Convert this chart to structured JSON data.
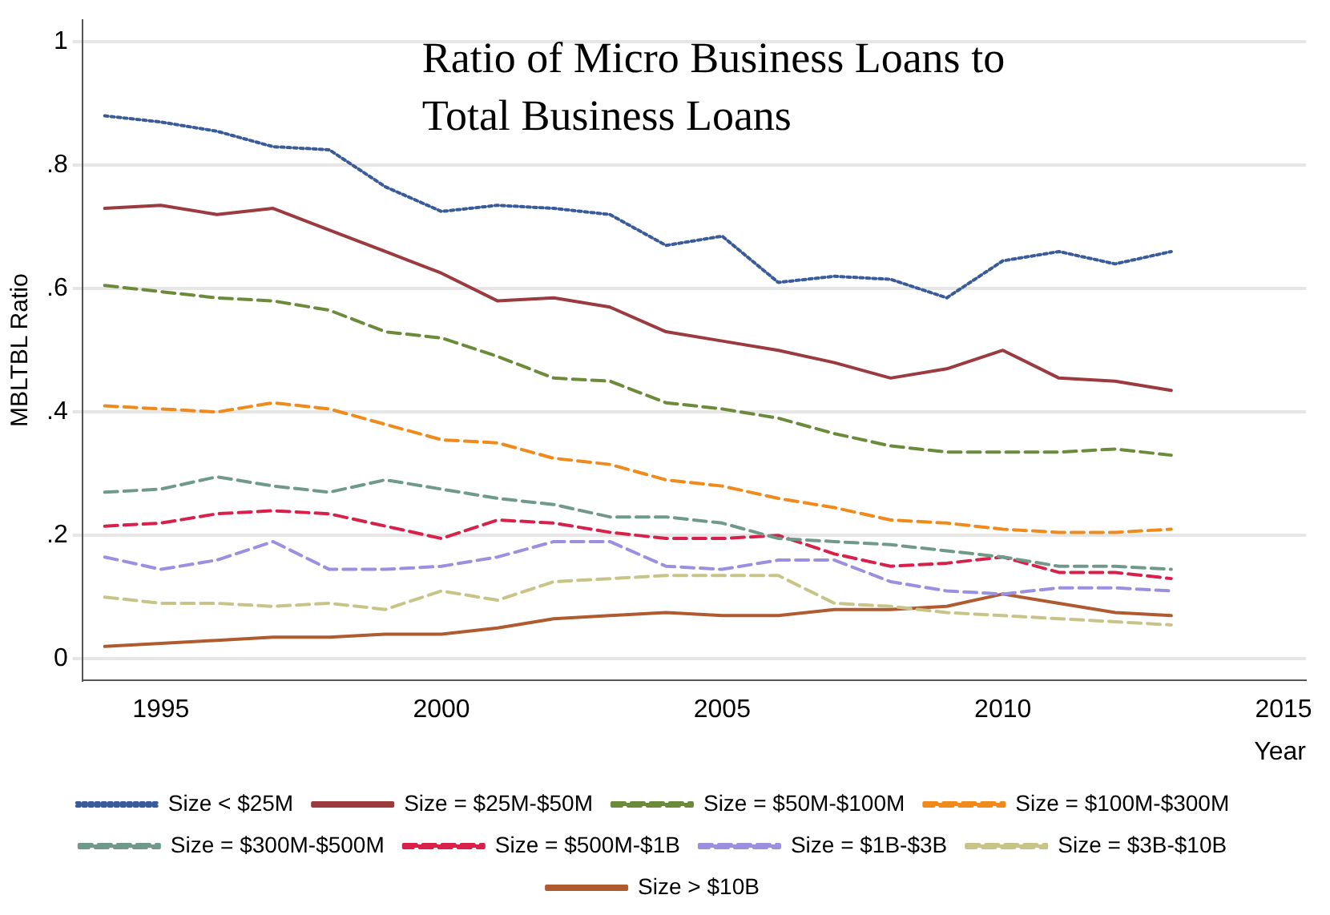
{
  "chart_data": {
    "type": "line",
    "title": "Ratio of Micro Business Loans to Total Business Loans",
    "xlabel": "Year",
    "ylabel": "MBLTBL Ratio",
    "x": [
      1994,
      1995,
      1996,
      1997,
      1998,
      1999,
      2000,
      2001,
      2002,
      2003,
      2004,
      2005,
      2006,
      2007,
      2008,
      2009,
      2010,
      2011,
      2012,
      2013
    ],
    "xlim": [
      1993.6,
      2015.4
    ],
    "xticks": [
      1995,
      2000,
      2005,
      2010,
      2015
    ],
    "ylim": [
      -0.035,
      1.035
    ],
    "yticks": [
      {
        "value": 0,
        "label": "0"
      },
      {
        "value": 0.2,
        "label": ".2"
      },
      {
        "value": 0.4,
        "label": ".4"
      },
      {
        "value": 0.6,
        "label": ".6"
      },
      {
        "value": 0.8,
        "label": ".8"
      },
      {
        "value": 1,
        "label": "1"
      }
    ],
    "grid": "y",
    "legend": "bottom",
    "marker": "none",
    "series": [
      {
        "name": "Size < $25M",
        "color": "#3a5b9a",
        "line_style": "dotted",
        "values": [
          0.88,
          0.87,
          0.855,
          0.83,
          0.825,
          0.765,
          0.725,
          0.735,
          0.73,
          0.72,
          0.67,
          0.685,
          0.61,
          0.62,
          0.615,
          0.585,
          0.645,
          0.66,
          0.64,
          0.66
        ]
      },
      {
        "name": "Size = $25M-$50M",
        "color": "#9b3a3f",
        "line_style": "solid",
        "values": [
          0.73,
          0.735,
          0.72,
          0.73,
          0.695,
          0.66,
          0.625,
          0.58,
          0.585,
          0.57,
          0.53,
          0.515,
          0.5,
          0.48,
          0.455,
          0.47,
          0.5,
          0.455,
          0.45,
          0.435
        ]
      },
      {
        "name": "Size = $50M-$100M",
        "color": "#6b8a3a",
        "line_style": "dashed",
        "values": [
          0.605,
          0.595,
          0.585,
          0.58,
          0.565,
          0.53,
          0.52,
          0.49,
          0.455,
          0.45,
          0.415,
          0.405,
          0.39,
          0.365,
          0.345,
          0.335,
          0.335,
          0.335,
          0.34,
          0.33
        ]
      },
      {
        "name": "Size = $100M-$300M",
        "color": "#f08a1a",
        "line_style": "dashed",
        "values": [
          0.41,
          0.405,
          0.4,
          0.415,
          0.405,
          0.38,
          0.355,
          0.35,
          0.325,
          0.315,
          0.29,
          0.28,
          0.26,
          0.245,
          0.225,
          0.22,
          0.21,
          0.205,
          0.205,
          0.21
        ]
      },
      {
        "name": "Size = $300M-$500M",
        "color": "#6f9a8a",
        "line_style": "dashed",
        "values": [
          0.27,
          0.275,
          0.295,
          0.28,
          0.27,
          0.29,
          0.275,
          0.26,
          0.25,
          0.23,
          0.23,
          0.22,
          0.195,
          0.19,
          0.185,
          0.175,
          0.165,
          0.15,
          0.15,
          0.145
        ]
      },
      {
        "name": "Size = $500M-$1B",
        "color": "#d8204a",
        "line_style": "dashed",
        "values": [
          0.215,
          0.22,
          0.235,
          0.24,
          0.235,
          0.215,
          0.195,
          0.225,
          0.22,
          0.205,
          0.195,
          0.195,
          0.2,
          0.17,
          0.15,
          0.155,
          0.165,
          0.14,
          0.14,
          0.13
        ]
      },
      {
        "name": "Size = $1B-$3B",
        "color": "#9b8fe0",
        "line_style": "dashed",
        "values": [
          0.165,
          0.145,
          0.16,
          0.19,
          0.145,
          0.145,
          0.15,
          0.165,
          0.19,
          0.19,
          0.15,
          0.145,
          0.16,
          0.16,
          0.125,
          0.11,
          0.105,
          0.115,
          0.115,
          0.11
        ]
      },
      {
        "name": "Size = $3B-$10B",
        "color": "#c8c488",
        "line_style": "dashed",
        "values": [
          0.1,
          0.09,
          0.09,
          0.085,
          0.09,
          0.08,
          0.11,
          0.095,
          0.125,
          0.13,
          0.135,
          0.135,
          0.135,
          0.09,
          0.085,
          0.075,
          0.07,
          0.065,
          0.06,
          0.055
        ]
      },
      {
        "name": "Size > $10B",
        "color": "#b05a30",
        "line_style": "solid",
        "values": [
          0.02,
          0.025,
          0.03,
          0.035,
          0.035,
          0.04,
          0.04,
          0.05,
          0.065,
          0.07,
          0.075,
          0.07,
          0.07,
          0.08,
          0.08,
          0.085,
          0.105,
          0.09,
          0.075,
          0.07
        ]
      }
    ]
  }
}
